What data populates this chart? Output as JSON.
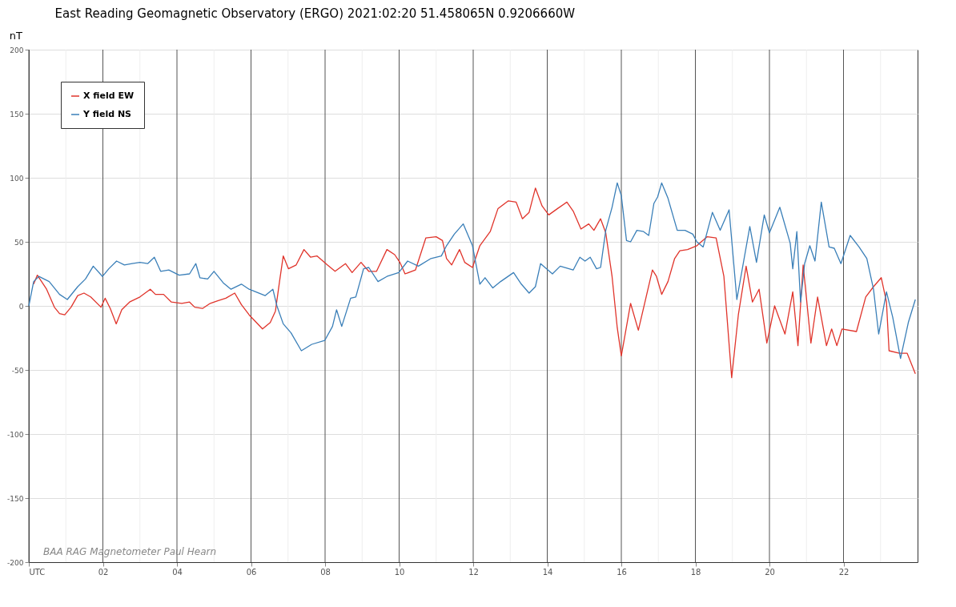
{
  "chart_data": {
    "type": "line",
    "title": "East Reading Geomagnetic Observatory  (ERGO)       2021:02:20       51.458065N    0.9206660W",
    "ylabel": "nT",
    "annotations": [
      "BAA RAG Magnetometer   Paul Hearn"
    ],
    "xlim": [
      0,
      24
    ],
    "ylim": [
      -200,
      200
    ],
    "xticks": [
      {
        "value": 0,
        "label": "UTC"
      },
      {
        "value": 1,
        "label": null
      },
      {
        "value": 2,
        "label": "02"
      },
      {
        "value": 3,
        "label": null
      },
      {
        "value": 4,
        "label": "04"
      },
      {
        "value": 5,
        "label": null
      },
      {
        "value": 6,
        "label": "06"
      },
      {
        "value": 7,
        "label": null
      },
      {
        "value": 8,
        "label": "08"
      },
      {
        "value": 9,
        "label": null
      },
      {
        "value": 10,
        "label": "10"
      },
      {
        "value": 11,
        "label": null
      },
      {
        "value": 12,
        "label": "12"
      },
      {
        "value": 13,
        "label": null
      },
      {
        "value": 14,
        "label": "14"
      },
      {
        "value": 15,
        "label": null
      },
      {
        "value": 16,
        "label": "16"
      },
      {
        "value": 17,
        "label": null
      },
      {
        "value": 18,
        "label": "18"
      },
      {
        "value": 19,
        "label": null
      },
      {
        "value": 20,
        "label": "20"
      },
      {
        "value": 21,
        "label": null
      },
      {
        "value": 22,
        "label": "22"
      },
      {
        "value": 23,
        "label": null
      }
    ],
    "yticks": [
      -200,
      -150,
      -100,
      -50,
      0,
      50,
      100,
      150,
      200
    ],
    "grid": true,
    "legend": "top left",
    "series": [
      {
        "name": "X field EW",
        "color": "#e0342b",
        "x": [
          0.13,
          0.23,
          0.48,
          0.69,
          0.83,
          0.97,
          1.14,
          1.32,
          1.49,
          1.67,
          1.95,
          2.06,
          2.2,
          2.36,
          2.51,
          2.72,
          3.0,
          3.28,
          3.42,
          3.64,
          3.85,
          4.13,
          4.34,
          4.48,
          4.69,
          4.9,
          5.1,
          5.32,
          5.56,
          5.74,
          5.95,
          6.31,
          6.52,
          6.66,
          6.77,
          6.87,
          7.01,
          7.22,
          7.43,
          7.61,
          7.78,
          8.06,
          8.27,
          8.55,
          8.73,
          8.97,
          9.18,
          9.39,
          9.67,
          9.88,
          10.02,
          10.16,
          10.44,
          10.72,
          11.0,
          11.17,
          11.28,
          11.42,
          11.63,
          11.77,
          11.98,
          12.18,
          12.46,
          12.67,
          12.95,
          13.16,
          13.33,
          13.51,
          13.68,
          13.86,
          14.04,
          14.28,
          14.53,
          14.7,
          14.91,
          15.12,
          15.26,
          15.44,
          15.58,
          15.75,
          15.89,
          16.0,
          16.11,
          16.25,
          16.46,
          16.67,
          16.84,
          16.95,
          17.09,
          17.26,
          17.44,
          17.58,
          17.79,
          18.04,
          18.32,
          18.56,
          18.77,
          18.98,
          19.16,
          19.37,
          19.54,
          19.72,
          19.93,
          20.14,
          20.42,
          20.63,
          20.77,
          20.91,
          21.12,
          21.3,
          21.54,
          21.68,
          21.82,
          21.96,
          22.35,
          22.6,
          22.81,
          23.02,
          23.16,
          23.23,
          23.51,
          23.72,
          23.94
        ],
        "values": [
          17,
          24,
          13,
          -1,
          -6,
          -7,
          -1,
          8,
          10,
          7,
          -1,
          6,
          -2,
          -14,
          -3,
          3,
          7,
          13,
          9,
          9,
          3,
          2,
          3,
          -1,
          -2,
          2,
          4,
          6,
          10,
          1,
          -7,
          -18,
          -13,
          -4,
          19,
          39,
          29,
          32,
          44,
          38,
          39,
          32,
          27,
          33,
          26,
          34,
          27,
          27,
          44,
          40,
          34,
          25,
          28,
          53,
          54,
          51,
          37,
          32,
          44,
          34,
          30,
          47,
          58,
          76,
          82,
          81,
          68,
          73,
          92,
          78,
          71,
          76,
          81,
          74,
          60,
          64,
          59,
          68,
          57,
          23,
          -17,
          -39,
          -21,
          2,
          -19,
          7,
          28,
          23,
          9,
          19,
          37,
          43,
          44,
          47,
          54,
          53,
          23,
          -56,
          -7,
          31,
          3,
          13,
          -29,
          0,
          -22,
          11,
          -31,
          32,
          -29,
          7,
          -31,
          -18,
          -31,
          -18,
          -20,
          7,
          15,
          22,
          3,
          -35,
          -37,
          -37,
          -53
        ]
      },
      {
        "name": "Y field NS",
        "color": "#3a7fb8",
        "x": [
          0,
          0.13,
          0.27,
          0.55,
          0.83,
          1.04,
          1.32,
          1.53,
          1.74,
          1.99,
          2.16,
          2.37,
          2.58,
          2.79,
          3.0,
          3.21,
          3.39,
          3.56,
          3.78,
          4.06,
          4.34,
          4.51,
          4.62,
          4.83,
          5.0,
          5.25,
          5.46,
          5.74,
          5.95,
          6.38,
          6.59,
          6.7,
          6.87,
          7.08,
          7.36,
          7.64,
          7.99,
          8.2,
          8.31,
          8.45,
          8.69,
          8.83,
          9.04,
          9.18,
          9.43,
          9.67,
          9.99,
          10.23,
          10.52,
          10.86,
          11.14,
          11.28,
          11.49,
          11.73,
          11.98,
          12.18,
          12.32,
          12.53,
          12.74,
          13.09,
          13.3,
          13.51,
          13.68,
          13.82,
          14.14,
          14.35,
          14.7,
          14.88,
          15.02,
          15.16,
          15.33,
          15.44,
          15.58,
          15.75,
          15.89,
          16.0,
          16.14,
          16.25,
          16.42,
          16.6,
          16.74,
          16.88,
          16.98,
          17.09,
          17.26,
          17.51,
          17.72,
          17.93,
          18.04,
          18.21,
          18.46,
          18.67,
          18.91,
          19.12,
          19.47,
          19.65,
          19.86,
          20.0,
          20.28,
          20.56,
          20.63,
          20.74,
          20.84,
          20.95,
          21.09,
          21.23,
          21.4,
          21.61,
          21.75,
          21.93,
          22.18,
          22.42,
          22.63,
          22.81,
          22.95,
          23.16,
          23.33,
          23.54,
          23.75,
          23.94
        ],
        "values": [
          0,
          19,
          23,
          19,
          9,
          5,
          15,
          21,
          31,
          23,
          29,
          35,
          32,
          33,
          34,
          33,
          38,
          27,
          28,
          24,
          25,
          33,
          22,
          21,
          27,
          18,
          13,
          17,
          13,
          8,
          13,
          0,
          -14,
          -21,
          -35,
          -30,
          -27,
          -16,
          -3,
          -16,
          6,
          7,
          29,
          30,
          19,
          23,
          26,
          35,
          31,
          37,
          39,
          47,
          56,
          64,
          47,
          17,
          22,
          14,
          19,
          26,
          17,
          10,
          15,
          33,
          25,
          31,
          28,
          38,
          35,
          38,
          29,
          30,
          59,
          77,
          96,
          86,
          51,
          50,
          59,
          58,
          55,
          80,
          85,
          96,
          84,
          59,
          59,
          56,
          50,
          46,
          73,
          59,
          75,
          5,
          62,
          34,
          71,
          57,
          77,
          49,
          29,
          58,
          3,
          33,
          47,
          35,
          81,
          46,
          45,
          33,
          55,
          46,
          37,
          13,
          -22,
          11,
          -9,
          -41,
          -13,
          5
        ]
      }
    ]
  }
}
